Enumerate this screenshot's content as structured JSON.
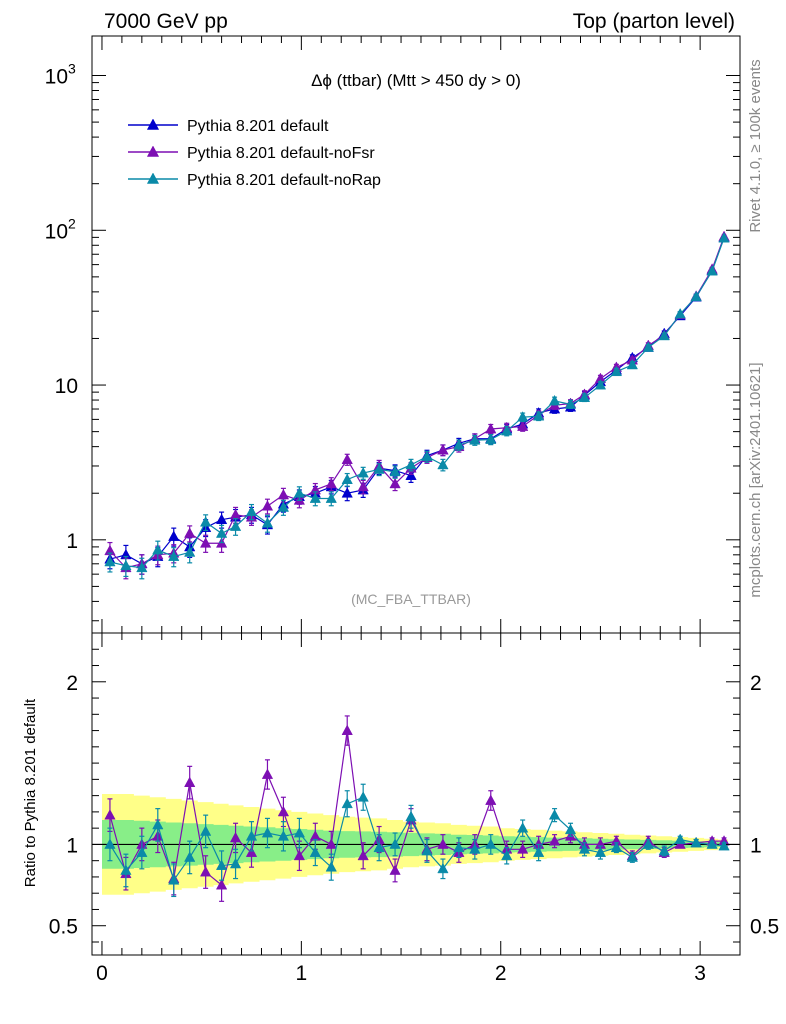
{
  "header": {
    "left": "7000 GeV pp",
    "right": "Top (parton level)"
  },
  "side_labels": {
    "rivet": "Rivet 4.1.0, ≥ 100k events",
    "mcplots": "mcplots.cern.ch [arXiv:2401.10621]"
  },
  "colors": {
    "default": "#0000cc",
    "noFsr": "#7d0fb3",
    "noRap": "#0a8aa8",
    "band_outer": "#ffff88",
    "band_inner": "#88ee88"
  },
  "chart_data": [
    {
      "type": "line",
      "title": "Δϕ (ttbar) (Mtt > 450 dy > 0)",
      "watermark": "(MC_FBA_TTBAR)",
      "yscale": "log",
      "xlim": [
        -0.05,
        3.2
      ],
      "ylim": [
        0.25,
        1800
      ],
      "yticks": [
        {
          "value": 1,
          "base": "1",
          "exp": ""
        },
        {
          "value": 10,
          "base": "10",
          "exp": ""
        },
        {
          "value": 100,
          "base": "10",
          "exp": "2"
        },
        {
          "value": 1000,
          "base": "10",
          "exp": "3"
        }
      ],
      "legend_position": "top-left",
      "x": [
        0.04,
        0.12,
        0.2,
        0.28,
        0.36,
        0.44,
        0.52,
        0.6,
        0.67,
        0.75,
        0.83,
        0.91,
        0.99,
        1.07,
        1.15,
        1.23,
        1.31,
        1.39,
        1.47,
        1.55,
        1.63,
        1.71,
        1.79,
        1.87,
        1.95,
        2.03,
        2.11,
        2.19,
        2.27,
        2.35,
        2.42,
        2.5,
        2.58,
        2.66,
        2.74,
        2.82,
        2.9,
        2.98,
        3.06,
        3.12
      ],
      "series": [
        {
          "name": "Pythia 8.201 default",
          "key": "default",
          "values": [
            0.75,
            0.8,
            0.7,
            0.78,
            1.05,
            0.9,
            1.2,
            1.35,
            1.4,
            1.45,
            1.25,
            1.7,
            1.9,
            2.0,
            2.2,
            2.0,
            2.1,
            2.9,
            2.8,
            2.6,
            3.5,
            3.8,
            4.2,
            4.5,
            4.5,
            5.2,
            5.6,
            6.6,
            7.0,
            7.2,
            8.6,
            10.5,
            12.5,
            15.0,
            17.5,
            21.5,
            28.0,
            37.0,
            55.0,
            90.0
          ],
          "errors": [
            0.1,
            0.12,
            0.1,
            0.11,
            0.14,
            0.13,
            0.15,
            0.16,
            0.17,
            0.17,
            0.16,
            0.19,
            0.2,
            0.21,
            0.22,
            0.21,
            0.22,
            0.26,
            0.25,
            0.25,
            0.29,
            0.3,
            0.32,
            0.33,
            0.33,
            0.36,
            0.37,
            0.41,
            0.43,
            0.44,
            0.48,
            0.52,
            0.6,
            0.68,
            0.75,
            0.85,
            1.0,
            1.2,
            1.5,
            2.0
          ]
        },
        {
          "name": "Pythia 8.201 default-noFsr",
          "key": "noFsr",
          "values": [
            0.85,
            0.66,
            0.7,
            0.8,
            0.82,
            1.1,
            0.95,
            0.95,
            1.45,
            1.4,
            1.65,
            1.95,
            1.8,
            2.1,
            2.3,
            3.3,
            2.2,
            3.0,
            2.3,
            2.9,
            3.4,
            3.8,
            4.0,
            4.5,
            5.2,
            5.3,
            5.4,
            6.4,
            7.4,
            7.6,
            8.7,
            11.0,
            13.0,
            14.5,
            18.0,
            21.0,
            28.5,
            37.5,
            56.0,
            91.0
          ],
          "errors": [
            0.11,
            0.1,
            0.1,
            0.11,
            0.11,
            0.13,
            0.12,
            0.12,
            0.17,
            0.16,
            0.18,
            0.2,
            0.19,
            0.21,
            0.22,
            0.27,
            0.22,
            0.26,
            0.22,
            0.25,
            0.28,
            0.3,
            0.31,
            0.33,
            0.36,
            0.36,
            0.37,
            0.41,
            0.43,
            0.44,
            0.48,
            0.55,
            0.6,
            0.65,
            0.75,
            0.8,
            1.0,
            1.2,
            1.5,
            2.0
          ]
        },
        {
          "name": "Pythia 8.201 default-noRap",
          "key": "noRap",
          "values": [
            0.72,
            0.68,
            0.66,
            0.86,
            0.78,
            0.83,
            1.3,
            1.1,
            1.22,
            1.52,
            1.28,
            1.62,
            2.0,
            1.85,
            1.85,
            2.45,
            2.7,
            2.85,
            2.75,
            3.05,
            3.45,
            3.05,
            4.1,
            4.4,
            4.45,
            5.05,
            6.2,
            6.3,
            7.9,
            7.5,
            8.3,
            10.0,
            12.2,
            13.5,
            17.5,
            20.8,
            28.8,
            37.2,
            54.5,
            89.0
          ],
          "errors": [
            0.1,
            0.1,
            0.1,
            0.12,
            0.11,
            0.12,
            0.15,
            0.14,
            0.15,
            0.17,
            0.16,
            0.18,
            0.2,
            0.19,
            0.19,
            0.23,
            0.24,
            0.25,
            0.25,
            0.26,
            0.28,
            0.26,
            0.31,
            0.32,
            0.33,
            0.35,
            0.39,
            0.4,
            0.45,
            0.44,
            0.47,
            0.52,
            0.6,
            0.65,
            0.75,
            0.82,
            1.0,
            1.2,
            1.5,
            2.0
          ]
        }
      ]
    },
    {
      "type": "line",
      "ylabel": "Ratio to Pythia 8.201 default",
      "xlim": [
        -0.05,
        3.2
      ],
      "ylim": [
        0.32,
        2.3
      ],
      "xticks": [
        0,
        1,
        2,
        3
      ],
      "yticks": [
        0.5,
        1,
        2
      ],
      "reference_line": 1,
      "band_outer_halfwidth": [
        0.31,
        0.31,
        0.3,
        0.29,
        0.28,
        0.27,
        0.26,
        0.25,
        0.24,
        0.23,
        0.22,
        0.21,
        0.2,
        0.19,
        0.18,
        0.17,
        0.165,
        0.16,
        0.15,
        0.14,
        0.135,
        0.13,
        0.12,
        0.115,
        0.11,
        0.1,
        0.095,
        0.09,
        0.085,
        0.08,
        0.075,
        0.07,
        0.065,
        0.06,
        0.055,
        0.05,
        0.045,
        0.04,
        0.035,
        0.03
      ],
      "band_inner_halfwidth": [
        0.15,
        0.15,
        0.145,
        0.14,
        0.135,
        0.13,
        0.125,
        0.12,
        0.115,
        0.11,
        0.105,
        0.1,
        0.095,
        0.09,
        0.085,
        0.082,
        0.08,
        0.078,
        0.075,
        0.072,
        0.068,
        0.065,
        0.06,
        0.058,
        0.055,
        0.05,
        0.048,
        0.045,
        0.042,
        0.04,
        0.038,
        0.035,
        0.032,
        0.03,
        0.028,
        0.025,
        0.022,
        0.02,
        0.018,
        0.015
      ],
      "series": [
        {
          "name": "Pythia 8.201 default-noFsr",
          "key": "noFsr",
          "values": [
            1.18,
            0.82,
            1.0,
            1.05,
            0.79,
            1.38,
            0.83,
            0.75,
            1.04,
            0.95,
            1.43,
            1.2,
            0.93,
            1.05,
            1.0,
            1.7,
            0.93,
            1.03,
            0.84,
            1.15,
            0.97,
            1.0,
            0.95,
            1.0,
            1.27,
            0.97,
            0.97,
            1.0,
            1.02,
            1.05,
            1.0,
            1.0,
            1.02,
            0.93,
            1.02,
            0.95,
            1.0,
            1.01,
            1.02,
            1.02
          ],
          "errors": [
            0.1,
            0.1,
            0.1,
            0.1,
            0.1,
            0.1,
            0.1,
            0.1,
            0.09,
            0.09,
            0.09,
            0.09,
            0.09,
            0.08,
            0.08,
            0.09,
            0.08,
            0.08,
            0.07,
            0.07,
            0.07,
            0.06,
            0.06,
            0.06,
            0.06,
            0.05,
            0.05,
            0.05,
            0.04,
            0.04,
            0.04,
            0.04,
            0.03,
            0.03,
            0.03,
            0.03,
            0.02,
            0.02,
            0.02,
            0.02
          ]
        },
        {
          "name": "Pythia 8.201 default-noRap",
          "key": "noRap",
          "values": [
            1.0,
            0.84,
            0.95,
            1.12,
            0.78,
            0.92,
            1.08,
            0.87,
            0.88,
            1.05,
            1.07,
            1.05,
            1.07,
            0.95,
            0.86,
            1.25,
            1.29,
            0.98,
            1.0,
            1.17,
            0.96,
            0.85,
            0.98,
            0.97,
            1.0,
            0.93,
            1.1,
            0.95,
            1.18,
            1.09,
            0.97,
            0.95,
            0.98,
            0.92,
            1.0,
            0.96,
            1.03,
            1.01,
            1.0,
            0.99
          ],
          "errors": [
            0.1,
            0.1,
            0.1,
            0.1,
            0.1,
            0.1,
            0.1,
            0.09,
            0.09,
            0.09,
            0.09,
            0.09,
            0.09,
            0.08,
            0.08,
            0.08,
            0.08,
            0.08,
            0.07,
            0.07,
            0.07,
            0.06,
            0.06,
            0.06,
            0.06,
            0.05,
            0.05,
            0.05,
            0.04,
            0.04,
            0.04,
            0.04,
            0.03,
            0.03,
            0.03,
            0.03,
            0.02,
            0.02,
            0.02,
            0.02
          ]
        }
      ]
    }
  ]
}
